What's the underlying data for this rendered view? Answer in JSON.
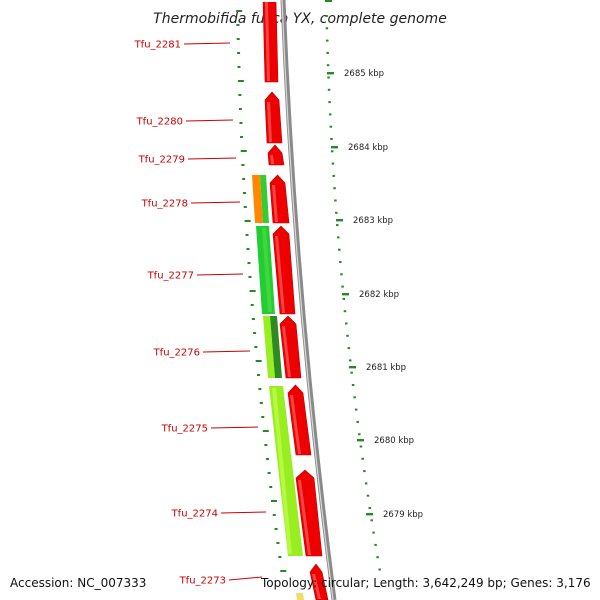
{
  "title": "Thermobifida fusca YX, complete genome",
  "footer": {
    "accession": "Accession: NC_007333",
    "summary": "Topology: circular; Length: 3,642,249 bp; Genes: 3,176"
  },
  "colors": {
    "label_red": "#cc0000",
    "cds_red": "#ee0000",
    "backbone_gray": "#888888",
    "tick_green": "#228b22",
    "expr_orange": "#ff8800",
    "expr_green": "#33cc33",
    "expr_lime": "#99ee22",
    "expr_yellow": "#eedd66"
  },
  "gene_labels": [
    "Tfu_2281",
    "Tfu_2280",
    "Tfu_2279",
    "Tfu_2278",
    "Tfu_2277",
    "Tfu_2276",
    "Tfu_2275",
    "Tfu_2274",
    "Tfu_2273"
  ],
  "scale_labels": [
    "2685 kbp",
    "2684 kbp",
    "2683 kbp",
    "2682 kbp",
    "2681 kbp",
    "2680 kbp",
    "2679 kbp"
  ]
}
